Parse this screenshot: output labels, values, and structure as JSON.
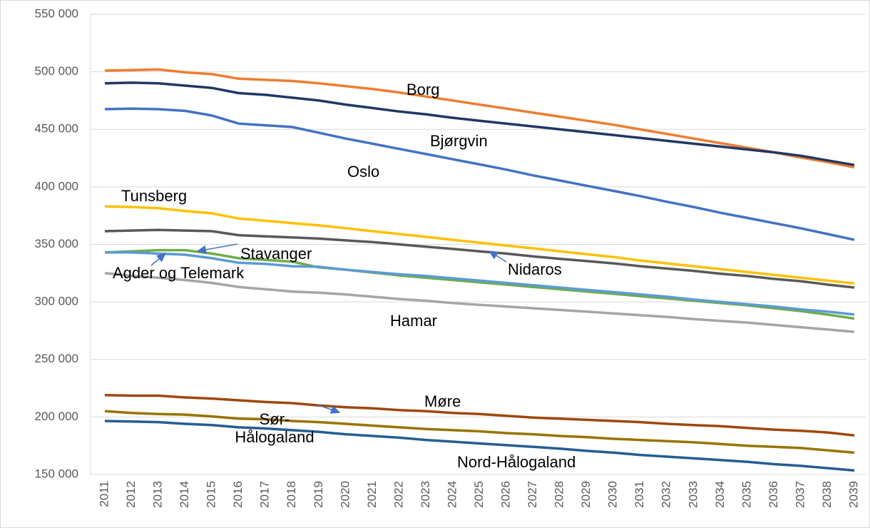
{
  "chart_data": {
    "type": "line",
    "categories": [
      "2011",
      "2012",
      "2013",
      "2014",
      "2015",
      "2016",
      "2017",
      "2018",
      "2019",
      "2020",
      "2021",
      "2022",
      "2023",
      "2024",
      "2025",
      "2026",
      "2027",
      "2028",
      "2029",
      "2030",
      "2031",
      "2032",
      "2033",
      "2034",
      "2035",
      "2036",
      "2037",
      "2038",
      "2039"
    ],
    "ylim": [
      150000,
      550000
    ],
    "yticks": [
      {
        "value": 150000,
        "label": "150 000"
      },
      {
        "value": 200000,
        "label": "200 000"
      },
      {
        "value": 250000,
        "label": "250 000"
      },
      {
        "value": 300000,
        "label": "300 000"
      },
      {
        "value": 350000,
        "label": "350 000"
      },
      {
        "value": 400000,
        "label": "400 000"
      },
      {
        "value": 450000,
        "label": "450 000"
      },
      {
        "value": 500000,
        "label": "500 000"
      },
      {
        "value": 550000,
        "label": "550 000"
      }
    ],
    "grid": true,
    "series": [
      {
        "name": "Borg",
        "color": "#ED7D31",
        "values": [
          501000,
          501500,
          502000,
          499500,
          498000,
          494000,
          493000,
          492000,
          490000,
          487500,
          485000,
          482000,
          478500,
          475000,
          471500,
          468000,
          464500,
          461000,
          457500,
          454000,
          450000,
          446000,
          442000,
          438000,
          434000,
          430000,
          425500,
          421500,
          417000
        ]
      },
      {
        "name": "Bjørgvin",
        "color": "#203864",
        "values": [
          490000,
          490500,
          490000,
          488000,
          486000,
          481500,
          480000,
          477500,
          475000,
          471500,
          468500,
          465500,
          463000,
          460000,
          457500,
          455000,
          452500,
          450000,
          447500,
          445000,
          442500,
          440000,
          437500,
          435000,
          432500,
          430000,
          427000,
          423000,
          419000
        ]
      },
      {
        "name": "Oslo",
        "color": "#4472C4",
        "values": [
          467500,
          468000,
          467500,
          466000,
          462000,
          455000,
          453500,
          452000,
          447000,
          442000,
          437500,
          433000,
          428500,
          424000,
          419500,
          415000,
          410000,
          405500,
          401000,
          396500,
          392000,
          387000,
          382500,
          377500,
          373000,
          368500,
          364000,
          359000,
          354000
        ]
      },
      {
        "name": "Tunsberg",
        "color": "#FFC000",
        "values": [
          383000,
          382500,
          381500,
          379000,
          377000,
          372500,
          370500,
          368500,
          366500,
          364000,
          361500,
          359000,
          356500,
          354000,
          351500,
          349000,
          346500,
          344000,
          341500,
          339000,
          336000,
          333500,
          331000,
          328500,
          326000,
          323500,
          321000,
          318500,
          316000
        ]
      },
      {
        "name": "Stavanger",
        "color": "#70AD47",
        "values": [
          343000,
          344000,
          345000,
          345000,
          342000,
          338000,
          336500,
          335000,
          330000,
          328000,
          325500,
          323000,
          321000,
          319000,
          317000,
          315000,
          313000,
          311000,
          309000,
          307000,
          305000,
          303000,
          301000,
          299000,
          297000,
          294500,
          292000,
          289000,
          285500
        ]
      },
      {
        "name": "Agder og Telemark",
        "color": "#5B9BD5",
        "values": [
          343000,
          343000,
          342000,
          341000,
          338000,
          334000,
          333000,
          331000,
          330500,
          328000,
          326000,
          324000,
          322500,
          320500,
          318500,
          316500,
          314500,
          312500,
          310500,
          308500,
          306500,
          304500,
          302000,
          300000,
          298000,
          296000,
          293500,
          291500,
          289000
        ]
      },
      {
        "name": "Nidaros",
        "color": "#595959",
        "values": [
          361500,
          362000,
          362500,
          362000,
          361500,
          358000,
          357000,
          356000,
          355000,
          353500,
          352000,
          350000,
          348000,
          346000,
          344000,
          342000,
          339500,
          337500,
          335500,
          333500,
          331000,
          329000,
          327000,
          324500,
          322500,
          320000,
          318000,
          315000,
          312500
        ]
      },
      {
        "name": "Hamar",
        "color": "#A5A5A5",
        "values": [
          325000,
          322500,
          321000,
          319000,
          316500,
          313000,
          311000,
          309000,
          308000,
          306500,
          304500,
          302500,
          301000,
          299000,
          297500,
          296000,
          294500,
          293000,
          291500,
          290000,
          288500,
          287000,
          285000,
          283500,
          282000,
          280000,
          278000,
          276000,
          274000
        ]
      },
      {
        "name": "Møre",
        "color": "#9E480E",
        "values": [
          219000,
          218500,
          218500,
          217000,
          216000,
          214500,
          213000,
          212000,
          210000,
          208500,
          207500,
          206000,
          205000,
          203500,
          202500,
          201000,
          199500,
          198500,
          197500,
          196500,
          195500,
          194000,
          193000,
          192000,
          190500,
          189000,
          188000,
          186500,
          184000
        ]
      },
      {
        "name": "Sør-Hålogaland",
        "color": "#997300",
        "values": [
          205000,
          203500,
          202500,
          202000,
          200500,
          198500,
          198000,
          196500,
          195500,
          194000,
          192500,
          191000,
          189500,
          188500,
          187500,
          186000,
          185000,
          183500,
          182500,
          181000,
          180000,
          179000,
          178000,
          176500,
          175000,
          174000,
          173000,
          171000,
          169000
        ]
      },
      {
        "name": "Nord-Hålogaland",
        "color": "#255E91",
        "values": [
          196500,
          196000,
          195500,
          194000,
          193000,
          191000,
          190000,
          188500,
          187000,
          185000,
          183500,
          182000,
          180000,
          178500,
          177000,
          175500,
          174000,
          172500,
          170500,
          169000,
          167000,
          165500,
          164000,
          162500,
          161000,
          159000,
          157500,
          155500,
          153500
        ]
      }
    ]
  }
}
